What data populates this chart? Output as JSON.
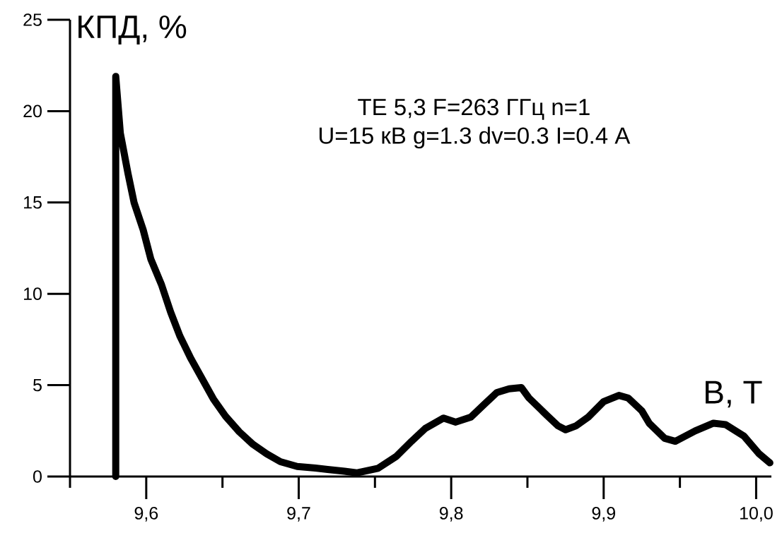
{
  "chart_data": {
    "type": "line",
    "ylabel": "КПД, %",
    "xlabel": "В, Т",
    "annotations": [
      "TE 5,3   F=263 ГГц   n=1",
      "U=15 кВ   g=1.3   dv=0.3  I=0.4 A"
    ],
    "xlim": [
      9.55,
      10.01
    ],
    "ylim": [
      0,
      25
    ],
    "xticks": [
      {
        "value": 9.55,
        "label": null
      },
      {
        "value": 9.6,
        "label": "9,6"
      },
      {
        "value": 9.65,
        "label": null
      },
      {
        "value": 9.7,
        "label": "9,7"
      },
      {
        "value": 9.75,
        "label": null
      },
      {
        "value": 9.8,
        "label": "9,8"
      },
      {
        "value": 9.85,
        "label": null
      },
      {
        "value": 9.9,
        "label": "9,9"
      },
      {
        "value": 9.95,
        "label": null
      },
      {
        "value": 10.0,
        "label": "10,0"
      }
    ],
    "yticks": [
      0,
      5,
      10,
      15,
      20,
      25
    ],
    "series": [
      {
        "color": "#000000",
        "x": [
          9.58,
          9.58,
          9.583,
          9.588,
          9.592,
          9.598,
          9.603,
          9.61,
          9.616,
          9.622,
          9.629,
          9.637,
          9.644,
          9.652,
          9.661,
          9.67,
          9.679,
          9.688,
          9.699,
          9.711,
          9.719,
          9.73,
          9.738,
          9.752,
          9.764,
          9.774,
          9.783,
          9.795,
          9.803,
          9.813,
          9.821,
          9.83,
          9.838,
          9.846,
          9.851,
          9.863,
          9.87,
          9.875,
          9.882,
          9.89,
          9.9,
          9.91,
          9.916,
          9.925,
          9.93,
          9.94,
          9.947,
          9.96,
          9.972,
          9.98,
          9.992,
          10.002,
          10.009
        ],
        "values": [
          0,
          21.9,
          18.8,
          16.6,
          15.0,
          13.5,
          11.9,
          10.5,
          9.0,
          7.7,
          6.5,
          5.3,
          4.25,
          3.3,
          2.45,
          1.76,
          1.24,
          0.81,
          0.55,
          0.46,
          0.39,
          0.29,
          0.2,
          0.45,
          1.1,
          1.93,
          2.63,
          3.2,
          2.98,
          3.26,
          3.9,
          4.6,
          4.8,
          4.87,
          4.3,
          3.33,
          2.78,
          2.56,
          2.78,
          3.26,
          4.1,
          4.44,
          4.3,
          3.6,
          2.9,
          2.09,
          1.93,
          2.5,
          2.92,
          2.84,
          2.21,
          1.24,
          0.75
        ]
      }
    ]
  }
}
